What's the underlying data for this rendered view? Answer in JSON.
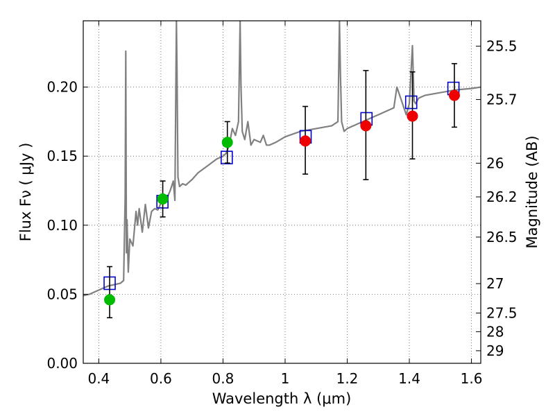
{
  "chart_data": {
    "type": "scatter",
    "xlabel": "Wavelength  λ (μm)",
    "ylabel": "Flux  Fν  ( μJy )",
    "y2label": "Magnitude (AB)",
    "xlim": [
      0.35,
      1.63
    ],
    "ylim": [
      0.0,
      0.248
    ],
    "grid": true,
    "x_ticks": [
      0.4,
      0.6,
      0.8,
      1.0,
      1.2,
      1.4,
      1.6
    ],
    "x_tick_labels": [
      "0.4",
      "0.6",
      "0.8",
      "1",
      "1.2",
      "1.4",
      "1.6"
    ],
    "y_ticks": [
      0.0,
      0.05,
      0.1,
      0.15,
      0.2
    ],
    "y_tick_labels": [
      "0.00",
      "0.05",
      "0.10",
      "0.15",
      "0.20"
    ],
    "mag_ticks": [
      {
        "label": "25.5",
        "flux": 0.2296
      },
      {
        "label": "25.7",
        "flux": 0.191
      },
      {
        "label": "26",
        "flux": 0.1449
      },
      {
        "label": "26.2",
        "flux": 0.1205
      },
      {
        "label": "26.5",
        "flux": 0.0914
      },
      {
        "label": "27",
        "flux": 0.0577
      },
      {
        "label": "27.5",
        "flux": 0.0364
      },
      {
        "label": "28",
        "flux": 0.0229
      },
      {
        "label": "29",
        "flux": 0.0091
      }
    ],
    "colors": {
      "spectrum": "#808080",
      "green_points": "#00bb00",
      "red_points": "#ee0000",
      "model_squares": "#0000cc",
      "errorbars": "#000000",
      "grid": "#555555"
    },
    "series": [
      {
        "name": "model spectrum",
        "kind": "line",
        "x": [
          0.35,
          0.37,
          0.39,
          0.41,
          0.43,
          0.45,
          0.47,
          0.48,
          0.485,
          0.487,
          0.489,
          0.491,
          0.495,
          0.5,
          0.51,
          0.52,
          0.525,
          0.53,
          0.54,
          0.55,
          0.56,
          0.57,
          0.58,
          0.59,
          0.6,
          0.62,
          0.63,
          0.64,
          0.645,
          0.65,
          0.652,
          0.655,
          0.66,
          0.67,
          0.68,
          0.7,
          0.72,
          0.75,
          0.78,
          0.8,
          0.81,
          0.82,
          0.83,
          0.84,
          0.85,
          0.855,
          0.858,
          0.862,
          0.87,
          0.88,
          0.89,
          0.9,
          0.92,
          0.93,
          0.94,
          0.95,
          0.97,
          1.0,
          1.05,
          1.1,
          1.15,
          1.17,
          1.175,
          1.178,
          1.182,
          1.19,
          1.2,
          1.25,
          1.3,
          1.35,
          1.36,
          1.39,
          1.4,
          1.41,
          1.415,
          1.42,
          1.43,
          1.45,
          1.5,
          1.55,
          1.6,
          1.63
        ],
        "y": [
          0.049,
          0.05,
          0.052,
          0.054,
          0.056,
          0.057,
          0.058,
          0.06,
          0.12,
          0.226,
          0.08,
          0.104,
          0.066,
          0.09,
          0.085,
          0.11,
          0.1,
          0.112,
          0.095,
          0.115,
          0.098,
          0.11,
          0.112,
          0.111,
          0.116,
          0.12,
          0.125,
          0.132,
          0.118,
          0.248,
          0.21,
          0.135,
          0.128,
          0.13,
          0.129,
          0.133,
          0.138,
          0.143,
          0.148,
          0.15,
          0.152,
          0.158,
          0.17,
          0.165,
          0.175,
          0.248,
          0.2,
          0.168,
          0.162,
          0.175,
          0.158,
          0.162,
          0.16,
          0.165,
          0.158,
          0.158,
          0.16,
          0.164,
          0.168,
          0.17,
          0.172,
          0.175,
          0.248,
          0.21,
          0.175,
          0.168,
          0.17,
          0.175,
          0.18,
          0.185,
          0.2,
          0.18,
          0.188,
          0.23,
          0.19,
          0.188,
          0.192,
          0.194,
          0.196,
          0.198,
          0.199,
          0.2
        ]
      },
      {
        "name": "observed (green)",
        "kind": "points",
        "x": [
          0.435,
          0.606,
          0.814
        ],
        "y": [
          0.046,
          0.119,
          0.16
        ],
        "err_low": [
          0.033,
          0.106,
          0.145
        ],
        "err_high": [
          0.07,
          0.132,
          0.175
        ]
      },
      {
        "name": "observed (red)",
        "kind": "points",
        "x": [
          1.065,
          1.26,
          1.41,
          1.545
        ],
        "y": [
          0.161,
          0.172,
          0.179,
          0.194
        ],
        "err_low": [
          0.137,
          0.133,
          0.148,
          0.171
        ],
        "err_high": [
          0.186,
          0.212,
          0.211,
          0.217
        ]
      },
      {
        "name": "model photometry",
        "kind": "squares",
        "x": [
          0.435,
          0.605,
          0.812,
          1.066,
          1.262,
          1.406,
          1.542
        ],
        "y": [
          0.058,
          0.117,
          0.149,
          0.164,
          0.177,
          0.189,
          0.199
        ]
      }
    ]
  }
}
